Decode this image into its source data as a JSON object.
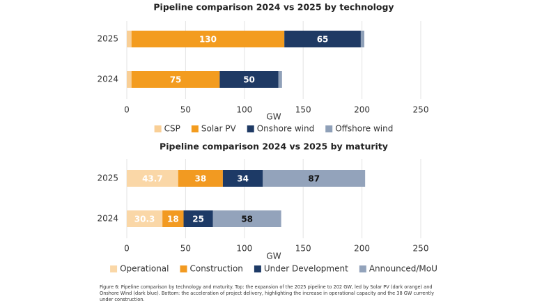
{
  "chart_data": [
    {
      "type": "stacked-barh",
      "title": "Pipeline comparison 2024 vs 2025 by technology",
      "x_label": "GW",
      "categories": [
        "2025",
        "2024"
      ],
      "xlim": [
        0,
        250
      ],
      "xticks": [
        0,
        50,
        100,
        150,
        200,
        250
      ],
      "grid": true,
      "legend": "bottom",
      "series": [
        {
          "name": "CSP",
          "color": "#f9cf96",
          "values": [
            4,
            4
          ],
          "show_labels": false,
          "label_color": "#ffffff"
        },
        {
          "name": "Solar PV",
          "color": "#f39c1f",
          "values": [
            130,
            75
          ],
          "show_labels": true,
          "label_color": "#ffffff"
        },
        {
          "name": "Onshore wind",
          "color": "#1f3a64",
          "values": [
            65,
            50
          ],
          "show_labels": true,
          "label_color": "#ffffff"
        },
        {
          "name": "Offshore wind",
          "color": "#8fa0b8",
          "values": [
            3,
            3
          ],
          "show_labels": false,
          "label_color": "#ffffff"
        }
      ]
    },
    {
      "type": "stacked-barh",
      "title": "Pipeline comparison 2024 vs 2025 by maturity",
      "x_label": "GW",
      "categories": [
        "2025",
        "2024"
      ],
      "xlim": [
        0,
        250
      ],
      "xticks": [
        0,
        50,
        100,
        150,
        200,
        250
      ],
      "grid": true,
      "legend": "bottom",
      "series": [
        {
          "name": "Operational",
          "color": "#fad7a7",
          "values": [
            43.7,
            30.3
          ],
          "show_labels": true,
          "label_color": "#ffffff"
        },
        {
          "name": "Construction",
          "color": "#f29a21",
          "values": [
            38,
            18
          ],
          "show_labels": true,
          "label_color": "#ffffff"
        },
        {
          "name": "Under Development",
          "color": "#1d3a66",
          "values": [
            34,
            25
          ],
          "show_labels": true,
          "label_color": "#ffffff"
        },
        {
          "name": "Announced/MoU",
          "color": "#93a3bb",
          "values": [
            87,
            58
          ],
          "show_labels": true,
          "label_color": "#111111"
        }
      ]
    }
  ],
  "caption": "Figure 6: Pipeline comparison by technology and maturity. Top: the expansion of the 2025 pipeline to 202 GW, led by Solar PV (dark orange) and Onshore Wind (dark blue). Bottom: the acceleration of project delivery, highlighting the increase in operational capacity and the 38 GW currently under construction."
}
